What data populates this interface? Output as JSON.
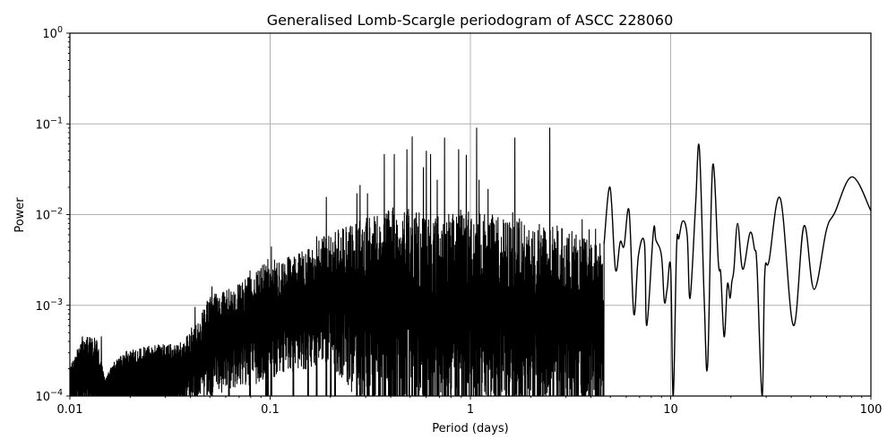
{
  "chart_data": {
    "type": "line",
    "title": "Generalised Lomb-Scargle periodogram of ASCC 228060",
    "xlabel": "Period (days)",
    "ylabel": "Power",
    "xscale": "log",
    "yscale": "log",
    "xlim": [
      0.01,
      100
    ],
    "ylim": [
      0.0001,
      1
    ],
    "grid": true,
    "legend": null,
    "line_color": "#000000",
    "grid_color": "#b0b0b0",
    "x_ticks": [
      {
        "value": 0.01,
        "label": "0.01"
      },
      {
        "value": 0.1,
        "label": "0.1"
      },
      {
        "value": 1,
        "label": "1"
      },
      {
        "value": 10,
        "label": "10"
      },
      {
        "value": 100,
        "label": "100"
      }
    ],
    "y_ticks": [
      {
        "value": 0.0001,
        "base": "10",
        "exp": "−4"
      },
      {
        "value": 0.001,
        "base": "10",
        "exp": "−3"
      },
      {
        "value": 0.01,
        "base": "10",
        "exp": "−2"
      },
      {
        "value": 0.1,
        "base": "10",
        "exp": "−1"
      },
      {
        "value": 1,
        "base": "10",
        "exp": "0"
      }
    ],
    "notable_peaks": [
      {
        "period": 0.305,
        "power": 0.017
      },
      {
        "period": 0.37,
        "power": 0.046
      },
      {
        "period": 0.415,
        "power": 0.046
      },
      {
        "period": 0.51,
        "power": 0.072
      },
      {
        "period": 0.74,
        "power": 0.07
      },
      {
        "period": 1.07,
        "power": 0.09
      },
      {
        "period": 1.66,
        "power": 0.07
      },
      {
        "period": 2.48,
        "power": 0.09
      },
      {
        "period": 4.98,
        "power": 0.02
      },
      {
        "period": 6.2,
        "power": 0.011
      },
      {
        "period": 13.9,
        "power": 0.055
      },
      {
        "period": 16.2,
        "power": 0.034
      },
      {
        "period": 21.6,
        "power": 0.008
      },
      {
        "period": 24.9,
        "power": 0.0063
      },
      {
        "period": 35.3,
        "power": 0.015
      },
      {
        "period": 46.3,
        "power": 0.0075
      },
      {
        "period": 80.5,
        "power": 0.026
      }
    ],
    "smooth_segment": [
      [
        4.65,
        0.0048
      ],
      [
        4.98,
        0.02
      ],
      [
        5.3,
        0.0025
      ],
      [
        5.6,
        0.005
      ],
      [
        5.85,
        0.0045
      ],
      [
        6.2,
        0.011
      ],
      [
        6.55,
        0.0008
      ],
      [
        6.9,
        0.0035
      ],
      [
        7.4,
        0.0048
      ],
      [
        7.6,
        0.0006
      ],
      [
        8.2,
        0.0065
      ],
      [
        8.45,
        0.0052
      ],
      [
        9.0,
        0.0035
      ],
      [
        9.3,
        0.0011
      ],
      [
        9.6,
        0.0015
      ],
      [
        10.0,
        0.0026
      ],
      [
        10.3,
        0.0001
      ],
      [
        10.7,
        0.0042
      ],
      [
        11.0,
        0.0055
      ],
      [
        11.5,
        0.0085
      ],
      [
        12.1,
        0.0058
      ],
      [
        12.5,
        0.0012
      ],
      [
        13.3,
        0.012
      ],
      [
        13.9,
        0.055
      ],
      [
        14.7,
        0.0012
      ],
      [
        15.3,
        0.00022
      ],
      [
        16.2,
        0.034
      ],
      [
        17.3,
        0.003
      ],
      [
        17.8,
        0.0022
      ],
      [
        18.5,
        0.00045
      ],
      [
        19.2,
        0.0017
      ],
      [
        19.8,
        0.0012
      ],
      [
        20.2,
        0.0018
      ],
      [
        20.7,
        0.0025
      ],
      [
        21.6,
        0.008
      ],
      [
        22.9,
        0.0025
      ],
      [
        24.9,
        0.0063
      ],
      [
        26.2,
        0.0042
      ],
      [
        27.0,
        0.0026
      ],
      [
        28.6,
        0.0001
      ],
      [
        29.5,
        0.0022
      ],
      [
        31.0,
        0.0031
      ],
      [
        35.3,
        0.015
      ],
      [
        41.0,
        0.0006
      ],
      [
        46.3,
        0.0075
      ],
      [
        52.0,
        0.0015
      ],
      [
        60.0,
        0.0068
      ],
      [
        66.0,
        0.0105
      ],
      [
        80.5,
        0.026
      ],
      [
        100,
        0.011
      ]
    ],
    "noise_floor": [
      [
        0.01,
        0.00015
      ],
      [
        0.03,
        0.00012
      ],
      [
        0.05,
        0.0002
      ],
      [
        0.1,
        0.0003
      ],
      [
        0.2,
        0.00045
      ],
      [
        0.3,
        0.00012
      ],
      [
        0.5,
        0.0001
      ],
      [
        1.0,
        0.0001
      ],
      [
        2.0,
        0.0001
      ],
      [
        4.6,
        0.0001
      ]
    ],
    "upper_envelope": [
      [
        0.01,
        0.0002
      ],
      [
        0.0115,
        0.00045
      ],
      [
        0.0135,
        0.00045
      ],
      [
        0.015,
        0.00015
      ],
      [
        0.017,
        0.00028
      ],
      [
        0.02,
        0.00033
      ],
      [
        0.025,
        0.00036
      ],
      [
        0.03,
        0.00037
      ],
      [
        0.035,
        0.00038
      ],
      [
        0.04,
        0.00055
      ],
      [
        0.045,
        0.0008
      ],
      [
        0.05,
        0.0013
      ],
      [
        0.06,
        0.0015
      ],
      [
        0.07,
        0.0017
      ],
      [
        0.08,
        0.0022
      ],
      [
        0.1,
        0.0032
      ],
      [
        0.13,
        0.0035
      ],
      [
        0.16,
        0.0045
      ],
      [
        0.2,
        0.0065
      ],
      [
        0.25,
        0.008
      ],
      [
        0.3,
        0.01
      ],
      [
        0.4,
        0.012
      ],
      [
        0.5,
        0.012
      ],
      [
        0.7,
        0.01
      ],
      [
        1.0,
        0.012
      ],
      [
        1.5,
        0.009
      ],
      [
        2.0,
        0.008
      ],
      [
        3.0,
        0.007
      ],
      [
        4.0,
        0.005
      ],
      [
        4.6,
        0.005
      ]
    ]
  }
}
